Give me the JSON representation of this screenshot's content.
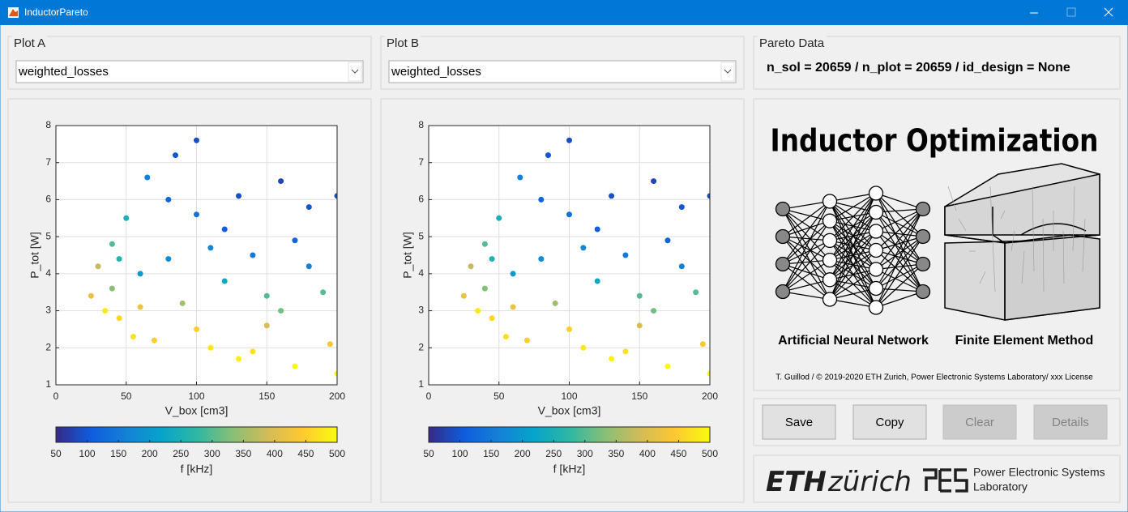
{
  "window_title": "InductorPareto",
  "panels": {
    "plot_a": {
      "title": "Plot A",
      "select": "weighted_losses"
    },
    "plot_b": {
      "title": "Plot B",
      "select": "weighted_losses"
    },
    "pareto": {
      "title": "Pareto Data",
      "info": "n_sol = 20659 / n_plot = 20659 / id_design = None"
    }
  },
  "banner": {
    "title": "Inductor Optimization",
    "left_caption": "Artificial Neural Network",
    "right_caption": "Finite Element Method",
    "credit": "T. Guillod / © 2019-2020 ETH Zurich, Power Electronic Systems Laboratory/ xxx License"
  },
  "buttons": [
    {
      "label": "Save",
      "enabled": true
    },
    {
      "label": "Copy",
      "enabled": true
    },
    {
      "label": "Clear",
      "enabled": false
    },
    {
      "label": "Details",
      "enabled": false
    }
  ],
  "logos": {
    "eth_bold": "ETH",
    "eth_light": "zürich",
    "pes_line1": "Power Electronic Systems",
    "pes_line2": "Laboratory"
  },
  "chart_data": [
    {
      "type": "scatter",
      "xlabel": "V_box [cm3]",
      "ylabel": "P_tot [W]",
      "xlim": [
        0,
        200
      ],
      "ylim": [
        1,
        8
      ],
      "xticks": [
        0,
        50,
        100,
        150,
        200
      ],
      "yticks": [
        1,
        2,
        3,
        4,
        5,
        6,
        7,
        8
      ],
      "grid": true,
      "colormap": [
        "#352a87",
        "#0f5cdd",
        "#1481d6",
        "#06a4ca",
        "#2eb7a4",
        "#87bf77",
        "#d1bb59",
        "#fec832",
        "#f9fb0e"
      ],
      "colorbar": {
        "label": "f [kHz]",
        "lim": [
          50,
          500
        ],
        "ticks": [
          50,
          100,
          150,
          200,
          250,
          300,
          350,
          400,
          450,
          500
        ]
      },
      "x": [
        25,
        30,
        35,
        40,
        45,
        50,
        55,
        60,
        70,
        80,
        90,
        100,
        110,
        120,
        130,
        140,
        150,
        160,
        170,
        180,
        190,
        200,
        40,
        60,
        80,
        100,
        120,
        140,
        160,
        180,
        200,
        85,
        100,
        65,
        130,
        170,
        195,
        150,
        110,
        45
      ],
      "y": [
        3.4,
        4.2,
        3.0,
        4.8,
        2.8,
        5.5,
        2.3,
        4.0,
        2.2,
        6.0,
        3.2,
        7.6,
        2.0,
        5.2,
        1.7,
        4.5,
        2.6,
        6.5,
        1.5,
        5.8,
        3.5,
        6.1,
        3.6,
        3.1,
        4.4,
        2.5,
        3.8,
        1.9,
        3.0,
        4.2,
        1.3,
        7.2,
        5.6,
        6.6,
        6.1,
        4.9,
        2.1,
        3.4,
        4.7,
        4.4
      ],
      "c": [
        420,
        380,
        480,
        300,
        460,
        250,
        470,
        200,
        450,
        120,
        350,
        90,
        480,
        110,
        490,
        150,
        400,
        80,
        500,
        100,
        300,
        90,
        330,
        420,
        180,
        450,
        230,
        470,
        320,
        160,
        500,
        100,
        140,
        160,
        90,
        120,
        440,
        300,
        170,
        260
      ]
    },
    {
      "type": "scatter",
      "xlabel": "V_box [cm3]",
      "ylabel": "P_tot [W]",
      "xlim": [
        0,
        200
      ],
      "ylim": [
        1,
        8
      ],
      "xticks": [
        0,
        50,
        100,
        150,
        200
      ],
      "yticks": [
        1,
        2,
        3,
        4,
        5,
        6,
        7,
        8
      ],
      "grid": true,
      "colormap": [
        "#352a87",
        "#0f5cdd",
        "#1481d6",
        "#06a4ca",
        "#2eb7a4",
        "#87bf77",
        "#d1bb59",
        "#fec832",
        "#f9fb0e"
      ],
      "colorbar": {
        "label": "f [kHz]",
        "lim": [
          50,
          500
        ],
        "ticks": [
          50,
          100,
          150,
          200,
          250,
          300,
          350,
          400,
          450,
          500
        ]
      },
      "x": [
        25,
        30,
        35,
        40,
        45,
        50,
        55,
        60,
        70,
        80,
        90,
        100,
        110,
        120,
        130,
        140,
        150,
        160,
        170,
        180,
        190,
        200,
        40,
        60,
        80,
        100,
        120,
        140,
        160,
        180,
        200,
        85,
        100,
        65,
        130,
        170,
        195,
        150,
        110,
        45
      ],
      "y": [
        3.4,
        4.2,
        3.0,
        4.8,
        2.8,
        5.5,
        2.3,
        4.0,
        2.2,
        6.0,
        3.2,
        7.6,
        2.0,
        5.2,
        1.7,
        4.5,
        2.6,
        6.5,
        1.5,
        5.8,
        3.5,
        6.1,
        3.6,
        3.1,
        4.4,
        2.5,
        3.8,
        1.9,
        3.0,
        4.2,
        1.3,
        7.2,
        5.6,
        6.6,
        6.1,
        4.9,
        2.1,
        3.4,
        4.7,
        4.4
      ],
      "c": [
        420,
        380,
        480,
        300,
        460,
        250,
        470,
        200,
        450,
        120,
        350,
        90,
        480,
        110,
        490,
        150,
        400,
        80,
        500,
        100,
        300,
        90,
        330,
        420,
        180,
        450,
        230,
        470,
        320,
        160,
        500,
        100,
        140,
        160,
        90,
        120,
        440,
        300,
        170,
        260
      ]
    }
  ]
}
